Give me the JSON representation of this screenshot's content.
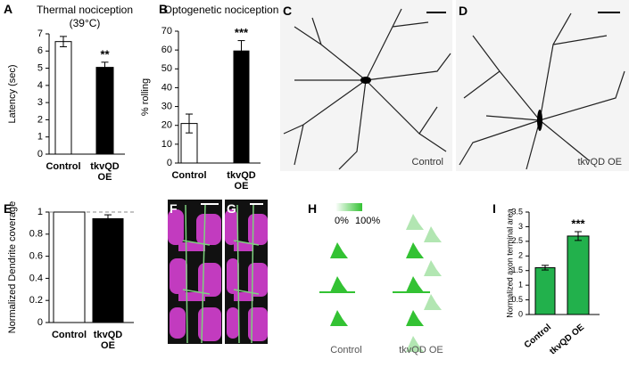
{
  "chart_data": [
    {
      "type": "bar",
      "panel": "A",
      "title": "Thermal nociception",
      "subtitle": "(39°C)",
      "ylabel": "Latency (sec)",
      "categories": [
        "Control",
        "tkvQD OE"
      ],
      "values": [
        6.55,
        5.05
      ],
      "errors": [
        0.3,
        0.3
      ],
      "colors": [
        "#ffffff",
        "#000000"
      ],
      "significance": [
        null,
        "**"
      ],
      "ylim": [
        0,
        7
      ],
      "yticks": [
        0,
        1,
        2,
        3,
        4,
        5,
        6,
        7
      ]
    },
    {
      "type": "bar",
      "panel": "B",
      "title": "Optogenetic nociception",
      "ylabel": "% rolling",
      "categories": [
        "Control",
        "tkvQD OE"
      ],
      "values": [
        21,
        59.5
      ],
      "errors": [
        5,
        5.5
      ],
      "colors": [
        "#ffffff",
        "#000000"
      ],
      "significance": [
        null,
        "***"
      ],
      "ylim": [
        0,
        70
      ],
      "yticks": [
        0,
        10,
        20,
        30,
        40,
        50,
        60,
        70
      ]
    },
    {
      "type": "bar",
      "panel": "E",
      "ylabel": "Normalized Dendrite coverage",
      "categories": [
        "Control",
        "tkvQD OE"
      ],
      "values": [
        1,
        0.94
      ],
      "errors": [
        0,
        0.035
      ],
      "colors": [
        "#ffffff",
        "#000000"
      ],
      "ylim": [
        0,
        1
      ],
      "yticks": [
        0,
        0.2,
        0.4,
        0.6,
        0.8,
        1
      ],
      "reference_line": 1
    },
    {
      "type": "bar",
      "panel": "I",
      "ylabel": "Normalized axon terminal area",
      "categories": [
        "Control",
        "tkvQD OE"
      ],
      "values": [
        1.6,
        2.68
      ],
      "errors": [
        0.08,
        0.15
      ],
      "colors": [
        "#22b14c",
        "#22b14c"
      ],
      "significance": [
        null,
        "***"
      ],
      "ylim": [
        0,
        3.5
      ],
      "yticks": [
        0,
        0.5,
        1,
        1.5,
        2,
        2.5,
        3,
        3.5
      ]
    }
  ],
  "images": [
    {
      "panel": "C",
      "label": "Control"
    },
    {
      "panel": "D",
      "label": "tkvQD OE"
    },
    {
      "panel": "F"
    },
    {
      "panel": "G"
    }
  ],
  "schematic": {
    "panel": "H",
    "legend": [
      "0%",
      "100%"
    ],
    "labels": [
      "Control",
      "tkvQD OE"
    ]
  }
}
